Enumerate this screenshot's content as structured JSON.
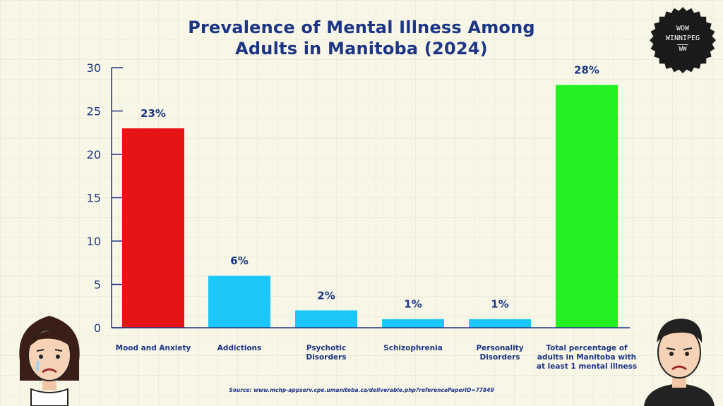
{
  "title_line1": "Prevalence of Mental Illness Among",
  "title_line2": "Adults in Manitoba (2024)",
  "badge": {
    "line1": "WOW",
    "line2": "WINNIPEG",
    "line3": "WW"
  },
  "source": "Source: www.mchp-appserv.cpe.umanitoba.ca/deliverable.php?referencePaperID=77849",
  "colors": {
    "title": "#1c3585",
    "red": "#e61414",
    "blue": "#1cc6f8",
    "green": "#22f020",
    "axis": "#1c3585"
  },
  "chart_data": {
    "type": "bar",
    "title": "Prevalence of Mental Illness Among Adults in Manitoba (2024)",
    "categories": [
      "Mood and Anxiety",
      "Addictions",
      "Psychotic Disorders",
      "Schizophrenia",
      "Personality Disorders",
      "Total percentage of adults in Manitoba with at least 1 mental illness"
    ],
    "category_lines": [
      [
        "Mood and Anxiety"
      ],
      [
        "Addictions"
      ],
      [
        "Psychotic",
        "Disorders"
      ],
      [
        "Schizophrenia"
      ],
      [
        "Personality",
        "Disorders"
      ],
      [
        "Total percentage of",
        "adults in Manitoba with",
        "at least 1 mental illness"
      ]
    ],
    "values": [
      23,
      6,
      2,
      1,
      1,
      28
    ],
    "data_labels": [
      "23%",
      "6%",
      "2%",
      "1%",
      "1%",
      "28%"
    ],
    "bar_colors": [
      "#e61414",
      "#1cc6f8",
      "#1cc6f8",
      "#1cc6f8",
      "#1cc6f8",
      "#22f020"
    ],
    "yticks": [
      0,
      5,
      10,
      15,
      20,
      25,
      30
    ],
    "ylim": [
      0,
      30
    ],
    "xlabel": "",
    "ylabel": "",
    "grid": false,
    "legend": "none"
  }
}
